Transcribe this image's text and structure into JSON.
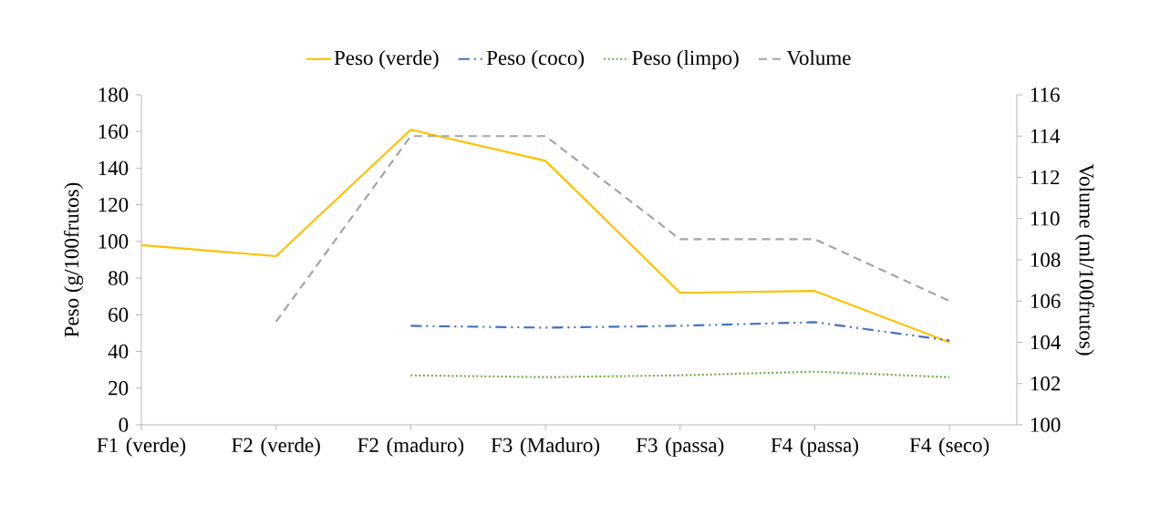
{
  "chart_data": {
    "type": "line",
    "categories": [
      "F1 (verde)",
      "F2 (verde)",
      "F2 (maduro)",
      "F3 (Maduro)",
      "F3 (passa)",
      "F4 (passa)",
      "F4 (seco)"
    ],
    "ylabel": "Peso (g/100frutos)",
    "y2label": "Volume (ml/100frutos)",
    "ylim": [
      0,
      180
    ],
    "yticks": [
      0,
      20,
      40,
      60,
      80,
      100,
      120,
      140,
      160,
      180
    ],
    "y2lim": [
      100,
      116
    ],
    "y2ticks": [
      100,
      102,
      104,
      106,
      108,
      110,
      112,
      114,
      116
    ],
    "legend": "top",
    "grid": false,
    "marker": "none",
    "series": [
      {
        "name": "Peso (verde)",
        "color": "#ffc000",
        "line_style": "solid",
        "values": [
          98,
          92,
          161,
          144,
          72,
          73,
          45
        ]
      },
      {
        "name": "Peso (coco)",
        "color": "#4472c4",
        "line_style": "dashdot",
        "values": [
          null,
          null,
          54,
          53,
          54,
          56,
          46
        ]
      },
      {
        "name": "Peso (limpo)",
        "color": "#70ad47",
        "line_style": "dotted",
        "values": [
          null,
          null,
          27,
          26,
          27,
          29,
          26
        ]
      },
      {
        "name": "Volume",
        "color": "#a5a5a5",
        "line_style": "dashed",
        "axis": "y2",
        "values": [
          null,
          105,
          114,
          114,
          109,
          109,
          106
        ]
      }
    ]
  }
}
